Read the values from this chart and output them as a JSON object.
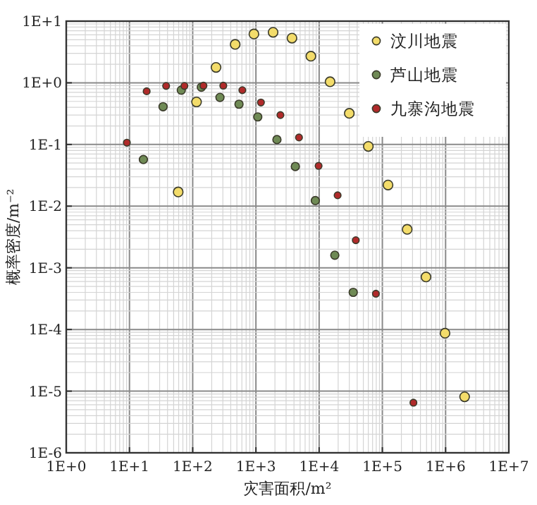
{
  "chart_data": {
    "type": "scatter",
    "xlabel": "灾害面积/m²",
    "ylabel": "概率密度/m⁻²",
    "log": "xy",
    "grid": true,
    "legend": "top right",
    "marker": "circle",
    "xlim": [
      1,
      10000000
    ],
    "ylim": [
      1e-06,
      10
    ],
    "xticks": [
      {
        "value": 1,
        "label": "1E+0"
      },
      {
        "value": 10,
        "label": "1E+1"
      },
      {
        "value": 100,
        "label": "1E+2"
      },
      {
        "value": 1000,
        "label": "1E+3"
      },
      {
        "value": 10000,
        "label": "1E+4"
      },
      {
        "value": 100000,
        "label": "1E+5"
      },
      {
        "value": 1000000,
        "label": "1E+6"
      },
      {
        "value": 10000000,
        "label": "1E+7"
      }
    ],
    "yticks": [
      {
        "value": 1e-06,
        "label": "1E-6"
      },
      {
        "value": 1e-05,
        "label": "1E-5"
      },
      {
        "value": 0.0001,
        "label": "1E-4"
      },
      {
        "value": 0.001,
        "label": "1E-3"
      },
      {
        "value": 0.01,
        "label": "1E-2"
      },
      {
        "value": 0.1,
        "label": "1E-1"
      },
      {
        "value": 1,
        "label": "1E+0"
      },
      {
        "value": 10,
        "label": "1E+1"
      }
    ],
    "series": [
      {
        "name": "汶川地震",
        "color": "#f3dc6a",
        "x": [
          59,
          115,
          234,
          470,
          930,
          1870,
          3720,
          7400,
          14900,
          30000,
          60000,
          123000,
          247000,
          490000,
          980000,
          2000000
        ],
        "values": [
          0.017,
          0.49,
          1.78,
          4.2,
          6.2,
          6.6,
          5.3,
          2.7,
          1.04,
          0.32,
          0.093,
          0.022,
          0.0042,
          0.00071,
          8.7e-05,
          8.1e-06
        ]
      },
      {
        "name": "芦山地震",
        "color": "#6f8a55",
        "x": [
          16.6,
          34,
          66,
          137,
          270,
          540,
          1070,
          2150,
          4200,
          8700,
          17700,
          34600
        ],
        "values": [
          0.057,
          0.41,
          0.76,
          0.85,
          0.58,
          0.45,
          0.28,
          0.12,
          0.044,
          0.0123,
          0.0016,
          0.0004
        ]
      },
      {
        "name": "九寨沟地震",
        "color": "#b02a2a",
        "x": [
          9.1,
          18.7,
          38,
          74,
          148,
          305,
          610,
          1200,
          2440,
          4800,
          9800,
          19600,
          38000,
          79000,
          310000
        ],
        "values": [
          0.107,
          0.73,
          0.89,
          0.89,
          0.9,
          0.9,
          0.76,
          0.48,
          0.3,
          0.13,
          0.045,
          0.015,
          0.0028,
          0.00038,
          6.5e-06
        ]
      }
    ]
  }
}
